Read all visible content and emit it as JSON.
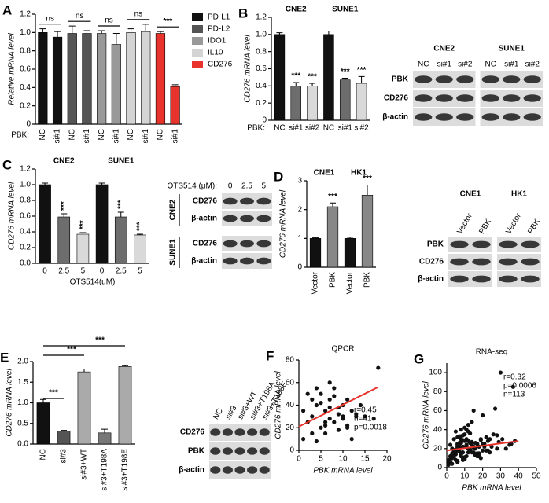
{
  "chart_data": [
    {
      "type": "bar",
      "panel": "A",
      "ylabel": "Relative mRNA level",
      "xlabel_prefix": "PBK:",
      "categories": [
        "NC",
        "si#1",
        "NC",
        "si#1",
        "NC",
        "si#1",
        "NC",
        "si#1",
        "NC",
        "si#1"
      ],
      "values": [
        1.0,
        0.95,
        0.99,
        0.99,
        0.99,
        0.87,
        1.0,
        1.01,
        0.99,
        0.41
      ],
      "errors": [
        0.04,
        0.06,
        0.08,
        0.03,
        0.03,
        0.12,
        0.04,
        0.08,
        0.02,
        0.02
      ],
      "colors": [
        "#111111",
        "#111111",
        "#555555",
        "#555555",
        "#999999",
        "#999999",
        "#d4d4d4",
        "#d4d4d4",
        "#e8322c",
        "#e8322c"
      ],
      "ylim": [
        0,
        1.2
      ],
      "yticks": [
        0,
        0.2,
        0.4,
        0.6,
        0.8,
        {
          "value": 1,
          "label": "1.0"
        },
        1.2
      ],
      "annotations": [
        "ns",
        "ns",
        "ns",
        "ns",
        "***"
      ],
      "legend": [
        {
          "name": "PD-L1",
          "color": "#111111"
        },
        {
          "name": "PD-L2",
          "color": "#555555"
        },
        {
          "name": "IDO1",
          "color": "#999999"
        },
        {
          "name": "IL10",
          "color": "#d4d4d4"
        },
        {
          "name": "CD276",
          "color": "#e8322c"
        }
      ]
    },
    {
      "type": "bar",
      "panel": "B",
      "ylabel": "CD276 mRNA level",
      "xlabel_prefix": "PBK:",
      "group_labels": [
        "CNE2",
        "SUNE1"
      ],
      "categories": [
        "NC",
        "si#1",
        "si#2",
        "NC",
        "si#1",
        "si#2"
      ],
      "values": [
        1.0,
        0.4,
        0.4,
        1.0,
        0.47,
        0.43
      ],
      "errors": [
        0.02,
        0.04,
        0.03,
        0.04,
        0.02,
        0.08
      ],
      "colors": [
        "#111111",
        "#6d6d6d",
        "#d9d9d9",
        "#111111",
        "#6d6d6d",
        "#d9d9d9"
      ],
      "ylim": [
        0,
        1.2
      ],
      "yticks": [
        0,
        0.2,
        0.4,
        0.6,
        0.8,
        {
          "value": 1,
          "label": "1.0"
        },
        1.2
      ],
      "annotations": [
        null,
        "***",
        "***",
        null,
        "***",
        "***"
      ]
    },
    {
      "type": "bar",
      "panel": "C",
      "ylabel": "CD276 mRNA level",
      "xlabel": "OTS514(uM)",
      "group_labels": [
        "CNE2",
        "SUNE1"
      ],
      "categories": [
        "0",
        "2.5",
        "5",
        "0",
        "2.5",
        "5"
      ],
      "values": [
        1.0,
        0.59,
        0.37,
        1.0,
        0.59,
        0.36
      ],
      "errors": [
        0.02,
        0.04,
        0.02,
        0.02,
        0.06,
        0.01
      ],
      "colors": [
        "#111111",
        "#6d6d6d",
        "#d9d9d9",
        "#111111",
        "#6d6d6d",
        "#d9d9d9"
      ],
      "ylim": [
        0,
        1.2
      ],
      "yticks": [
        {
          "value": 0,
          "label": "0.0"
        },
        0.2,
        0.4,
        0.6,
        0.8,
        {
          "value": 1,
          "label": "1.0"
        },
        1.2
      ],
      "annotations": [
        null,
        "***",
        "***",
        null,
        "***",
        "***"
      ]
    },
    {
      "type": "bar",
      "panel": "D",
      "ylabel": "CD276 mRNA level",
      "group_labels": [
        "CNE1",
        "HK1"
      ],
      "categories": [
        "Vector",
        "PBK",
        "Vector",
        "PBK"
      ],
      "values": [
        1.0,
        2.1,
        1.0,
        2.5
      ],
      "errors": [
        0.02,
        0.13,
        0.04,
        0.35
      ],
      "colors": [
        "#111111",
        "#888888",
        "#111111",
        "#888888"
      ],
      "ylim": [
        0,
        3
      ],
      "yticks": [
        0,
        1,
        2,
        3
      ],
      "annotations": [
        null,
        "***",
        null,
        "***"
      ]
    },
    {
      "type": "bar",
      "panel": "E",
      "ylabel": "CD276 mRNA level",
      "categories": [
        "NC",
        "si#3",
        "si#3+WT",
        "si#3+T198A",
        "si#3+T198E"
      ],
      "values": [
        1.0,
        0.31,
        1.75,
        0.27,
        1.88
      ],
      "errors": [
        0.08,
        0.02,
        0.07,
        0.09,
        0.02
      ],
      "colors": [
        "#111111",
        "#555555",
        "#aaaaaa",
        "#777777",
        "#aaaaaa"
      ],
      "ylim": [
        0,
        2
      ],
      "yticks": [
        {
          "value": 0,
          "label": "0.0"
        },
        0.5,
        {
          "value": 1,
          "label": "1.0"
        },
        1.5,
        {
          "value": 2,
          "label": "2.0"
        }
      ],
      "brackets": [
        "***",
        "***",
        "***"
      ]
    },
    {
      "type": "scatter",
      "panel": "F",
      "title": "QPCR",
      "xlabel": "PBK mRNA level",
      "ylabel": "CD276 mRNA level",
      "x": [
        1,
        2,
        3,
        3,
        4,
        4,
        5,
        5,
        6,
        6,
        7,
        7,
        7,
        8,
        8,
        9,
        9,
        10,
        10,
        11,
        11,
        12,
        12,
        13,
        14,
        2,
        3,
        5,
        6,
        8,
        9,
        10,
        4,
        7,
        11,
        13,
        15,
        17,
        18,
        1,
        6
      ],
      "y": [
        10,
        25,
        30,
        45,
        8,
        40,
        20,
        50,
        35,
        15,
        45,
        28,
        60,
        25,
        55,
        38,
        18,
        40,
        30,
        45,
        22,
        35,
        10,
        30,
        40,
        50,
        15,
        42,
        25,
        48,
        32,
        28,
        55,
        38,
        20,
        32,
        30,
        28,
        73,
        35,
        22
      ],
      "color": "#111111",
      "fit": {
        "x": [
          0,
          18
        ],
        "y": [
          21,
          56
        ],
        "color": "#e8322c"
      },
      "xlim": [
        0,
        20
      ],
      "xticks": [
        0,
        5,
        10,
        15,
        20
      ],
      "ylim": [
        0,
        80
      ],
      "yticks": [
        0,
        20,
        40,
        60,
        80
      ],
      "stats": [
        "r=0.45",
        "n=41",
        "p=0.0018"
      ]
    },
    {
      "type": "scatter",
      "panel": "G",
      "title": "RNA-seq",
      "xlabel": "PBK mRNA level",
      "ylabel": "CD276 mRNA level",
      "x": [
        2,
        3,
        5,
        6,
        8,
        4,
        7,
        9,
        10,
        12,
        1,
        3,
        5,
        7,
        11,
        13,
        15,
        6,
        8,
        14,
        2,
        4,
        6,
        9,
        10,
        12,
        16,
        18,
        20,
        5,
        3,
        7,
        8,
        11,
        13,
        17,
        19,
        22,
        25,
        1,
        4,
        6,
        9,
        10,
        12,
        14,
        15,
        21,
        23,
        2,
        5,
        8,
        11,
        13,
        16,
        18,
        20,
        24,
        27,
        3,
        6,
        7,
        9,
        12,
        14,
        17,
        19,
        26,
        28,
        4,
        2,
        5,
        8,
        10,
        11,
        15,
        16,
        22,
        30,
        35,
        3,
        6,
        7,
        9,
        13,
        14,
        18,
        21,
        24,
        37,
        1,
        4,
        8,
        10,
        12,
        15,
        17,
        20,
        29,
        33,
        5,
        7,
        9,
        11,
        16,
        19,
        23,
        31,
        38,
        6,
        28,
        36,
        8
      ],
      "y": [
        12,
        20,
        8,
        25,
        30,
        15,
        18,
        22,
        35,
        28,
        5,
        10,
        14,
        26,
        40,
        18,
        22,
        32,
        12,
        24,
        9,
        30,
        6,
        16,
        28,
        45,
        20,
        15,
        25,
        38,
        4,
        17,
        33,
        22,
        26,
        12,
        30,
        18,
        22,
        8,
        14,
        24,
        10,
        42,
        20,
        16,
        60,
        25,
        28,
        6,
        19,
        27,
        12,
        36,
        14,
        22,
        18,
        30,
        62,
        15,
        7,
        21,
        29,
        16,
        48,
        25,
        10,
        35,
        20,
        11,
        24,
        18,
        40,
        9,
        30,
        16,
        26,
        32,
        100,
        24,
        13,
        6,
        23,
        34,
        19,
        27,
        12,
        22,
        16,
        85,
        3,
        18,
        26,
        11,
        38,
        21,
        15,
        55,
        27,
        20,
        17,
        33,
        8,
        24,
        13,
        29,
        18,
        30,
        28,
        22,
        34,
        25,
        14
      ],
      "color": "#111111",
      "fit": {
        "x": [
          0,
          40
        ],
        "y": [
          18,
          28
        ],
        "color": "#e8322c"
      },
      "xlim": [
        0,
        50
      ],
      "xticks": [
        0,
        10,
        20,
        30,
        40,
        50
      ],
      "ylim": [
        0,
        110
      ],
      "yticks": [
        0,
        20,
        40,
        60,
        80,
        100
      ],
      "stats": [
        "r=0.32",
        "p=0.0006",
        "n=113"
      ]
    }
  ],
  "blots": [
    {
      "groups": [
        "CNE2",
        "SUNE1"
      ],
      "lanes": [
        "NC",
        "si#1",
        "si#2",
        "NC",
        "si#1",
        "si#2"
      ],
      "rows": [
        "PBK",
        "CD276",
        "β-actin"
      ]
    },
    {
      "header": "OTS514 (μM):",
      "lanes": [
        "0",
        "2.5",
        "5"
      ],
      "groups": [
        "CNE2",
        "SUNE1"
      ],
      "rows": [
        "CD276",
        "β-actin",
        "CD276",
        "β-actin"
      ]
    },
    {
      "groups": [
        "CNE1",
        "HK1"
      ],
      "lanes": [
        "Vector",
        "PBK",
        "Vector",
        "PBK"
      ],
      "rows": [
        "PBK",
        "CD276",
        "β-actin"
      ]
    },
    {
      "lanes": [
        "NC",
        "si#3",
        "si#3+WT",
        "si#3+T198A",
        "si#3+T198E"
      ],
      "rows": [
        "CD276",
        "PBK",
        "β-actin"
      ]
    }
  ]
}
